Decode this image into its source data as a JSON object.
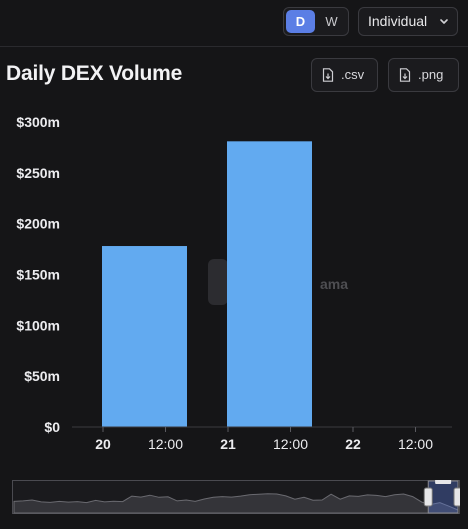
{
  "controls": {
    "period_options": [
      "D",
      "W"
    ],
    "period_selected": "D",
    "view_select": "Individual",
    "chevron_icon": "chevron-down-icon"
  },
  "header": {
    "title": "Daily DEX Volume",
    "csv_label": ".csv",
    "png_label": ".png",
    "file_icon": "file-download-icon"
  },
  "watermark": {
    "text": "ama"
  },
  "chart_data": {
    "type": "bar",
    "title": "Daily DEX Volume",
    "xlabel": "",
    "ylabel": "",
    "x_tick_labels": [
      "20",
      "12:00",
      "21",
      "12:00",
      "22",
      "12:00"
    ],
    "y_tick_labels": [
      "$0",
      "$50m",
      "$100m",
      "$150m",
      "$200m",
      "$250m",
      "$300m"
    ],
    "ylim": [
      0,
      300000000
    ],
    "categories": [
      "20",
      "21"
    ],
    "values": [
      178000000,
      281000000
    ],
    "bar_color": "#62aaf0",
    "grid": false,
    "legend": "none"
  },
  "navigator": {
    "series": [
      0.4,
      0.42,
      0.46,
      0.38,
      0.36,
      0.4,
      0.37,
      0.39,
      0.35,
      0.44,
      0.38,
      0.41,
      0.39,
      0.62,
      0.58,
      0.66,
      0.57,
      0.59,
      0.42,
      0.46,
      0.4,
      0.5,
      0.57,
      0.6,
      0.58,
      0.62,
      0.68,
      0.7,
      0.72,
      0.71,
      0.63,
      0.49,
      0.57,
      0.45,
      0.46,
      0.7,
      0.49,
      0.63,
      0.61,
      0.67,
      0.65,
      0.6,
      0.68,
      0.71,
      0.6,
      0.37,
      0.27,
      0.35,
      0.2,
      0.04
    ],
    "selection": [
      0.933,
      1.0
    ],
    "line_color": "#6a6a70",
    "fill_color": "#4a4a50"
  }
}
